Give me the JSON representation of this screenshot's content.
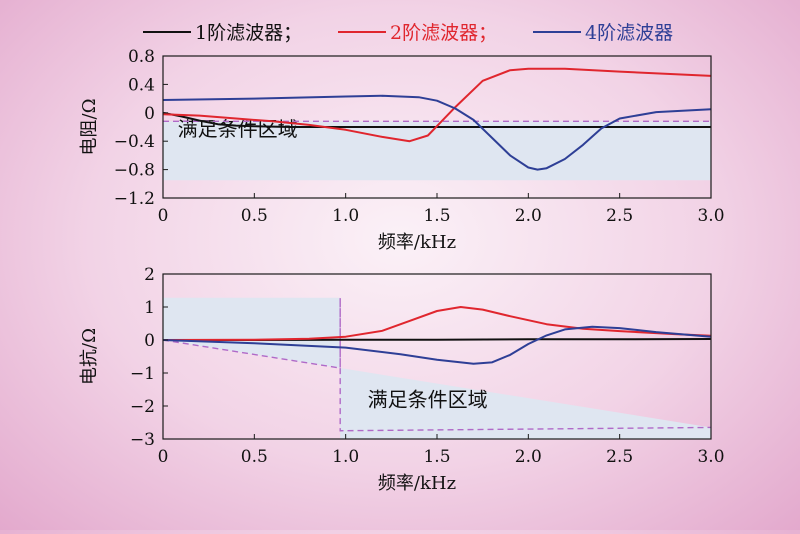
{
  "legend": [
    {
      "label": "1阶滤波器；",
      "color": "#111111"
    },
    {
      "label": "2阶滤波器；",
      "color": "#e0262e"
    },
    {
      "label": "4阶滤波器",
      "color": "#2e3f96"
    }
  ],
  "colors": {
    "region_fill": "#dfe6f1",
    "boundary": "#b06ac8",
    "axis": "#1a1a1a"
  },
  "chart_data": [
    {
      "type": "line",
      "title": "",
      "xlabel": "频率/kHz",
      "ylabel": "电阻/Ω",
      "xlim": [
        0,
        3.0
      ],
      "ylim": [
        -1.2,
        0.8
      ],
      "xticks": [
        "0",
        "0.5",
        "1.0",
        "1.5",
        "2.0",
        "2.5",
        "3.0"
      ],
      "yticks": [
        "0.8",
        "0.4",
        "0",
        "−0.4",
        "−0.8",
        "−1.2"
      ],
      "region_label": "满足条件区域",
      "region": {
        "x": [
          0,
          3.0
        ],
        "y": [
          -0.95,
          -0.12
        ]
      },
      "boundary_line": {
        "x": [
          0,
          3.0
        ],
        "y": [
          -0.12,
          -0.12
        ]
      },
      "series": [
        {
          "name": "1阶滤波器",
          "color": "#111111",
          "x": [
            0,
            0.1,
            0.2,
            0.3,
            0.4,
            0.5,
            0.7,
            1.0,
            1.5,
            2.0,
            2.5,
            3.0
          ],
          "y": [
            0.0,
            -0.05,
            -0.11,
            -0.16,
            -0.18,
            -0.19,
            -0.2,
            -0.2,
            -0.2,
            -0.2,
            -0.2,
            -0.2
          ]
        },
        {
          "name": "2阶滤波器",
          "color": "#e0262e",
          "x": [
            0,
            0.2,
            0.4,
            0.6,
            0.8,
            1.0,
            1.2,
            1.35,
            1.45,
            1.6,
            1.75,
            1.9,
            2.0,
            2.2,
            2.5,
            3.0
          ],
          "y": [
            -0.02,
            -0.04,
            -0.08,
            -0.12,
            -0.17,
            -0.24,
            -0.34,
            -0.4,
            -0.32,
            0.08,
            0.45,
            0.6,
            0.62,
            0.62,
            0.58,
            0.52
          ]
        },
        {
          "name": "4阶滤波器",
          "color": "#2e3f96",
          "x": [
            0,
            0.5,
            1.0,
            1.2,
            1.4,
            1.5,
            1.6,
            1.7,
            1.8,
            1.9,
            2.0,
            2.05,
            2.1,
            2.2,
            2.3,
            2.4,
            2.5,
            2.7,
            3.0
          ],
          "y": [
            0.18,
            0.2,
            0.23,
            0.24,
            0.22,
            0.17,
            0.06,
            -0.1,
            -0.35,
            -0.6,
            -0.77,
            -0.8,
            -0.78,
            -0.65,
            -0.45,
            -0.22,
            -0.08,
            0.01,
            0.05
          ]
        }
      ]
    },
    {
      "type": "line",
      "title": "",
      "xlabel": "频率/kHz",
      "ylabel": "电抗/Ω",
      "xlim": [
        0,
        3.0
      ],
      "ylim": [
        -3,
        2
      ],
      "xticks": [
        "0",
        "0.5",
        "1.0",
        "1.5",
        "2.0",
        "2.5",
        "3.0"
      ],
      "yticks": [
        "2",
        "1",
        "0",
        "−1",
        "−2",
        "−3"
      ],
      "region_label": "满足条件区域",
      "region_left": {
        "x": [
          0,
          0.97
        ],
        "y": [
          0,
          1.28
        ]
      },
      "region_right": {
        "x": [
          0.97,
          3.0
        ],
        "y_top_start": -0.85,
        "y_top_end": -2.65,
        "y_bottom": -3
      },
      "boundary_line": {
        "x": [
          0,
          0.97,
          0.97,
          0.97,
          3.0
        ],
        "y": [
          0,
          -0.85,
          1.28,
          -2.75,
          -2.65
        ]
      },
      "series": [
        {
          "name": "1阶滤波器",
          "color": "#111111",
          "x": [
            0,
            0.5,
            1.0,
            1.5,
            2.0,
            2.5,
            3.0
          ],
          "y": [
            0.0,
            0.0,
            0.01,
            0.01,
            0.02,
            0.02,
            0.03
          ]
        },
        {
          "name": "2阶滤波器",
          "color": "#e0262e",
          "x": [
            0,
            0.5,
            0.8,
            1.0,
            1.2,
            1.35,
            1.5,
            1.63,
            1.75,
            1.9,
            2.1,
            2.3,
            2.5,
            2.8,
            3.0
          ],
          "y": [
            0.0,
            0.01,
            0.04,
            0.1,
            0.28,
            0.58,
            0.88,
            1.0,
            0.92,
            0.72,
            0.48,
            0.34,
            0.27,
            0.18,
            0.13
          ]
        },
        {
          "name": "4阶滤波器",
          "color": "#2e3f96",
          "x": [
            0,
            0.5,
            1.0,
            1.3,
            1.5,
            1.7,
            1.8,
            1.9,
            2.0,
            2.1,
            2.2,
            2.35,
            2.5,
            2.7,
            3.0
          ],
          "y": [
            0.0,
            -0.1,
            -0.23,
            -0.43,
            -0.6,
            -0.72,
            -0.68,
            -0.45,
            -0.12,
            0.14,
            0.32,
            0.4,
            0.36,
            0.24,
            0.1
          ]
        }
      ]
    }
  ]
}
